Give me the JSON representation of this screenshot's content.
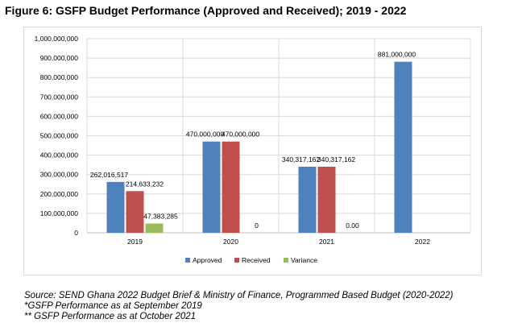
{
  "figure_title": "Figure 6: GSFP Budget Performance (Approved and Received); 2019 - 2022",
  "notes": [
    "Source: SEND Ghana 2022 Budget Brief & Ministry of Finance, Programmed Based Budget (2020-2022)",
    "*GSFP Performance as at September 2019",
    "** GSFP Performance as at October 2021"
  ],
  "chart_data": {
    "type": "bar",
    "title": "",
    "xlabel": "",
    "ylabel": "",
    "categories": [
      "2019",
      "2020",
      "2021",
      "2022"
    ],
    "ylim": [
      0,
      1000000000
    ],
    "ytick_step": 100000000,
    "y_tick_labels": [
      "0",
      "100,000,000",
      "200,000,000",
      "300,000,000",
      "400,000,000",
      "500,000,000",
      "600,000,000",
      "700,000,000",
      "800,000,000",
      "900,000,000",
      "1,000,000,000"
    ],
    "grid": true,
    "legend_position": "bottom",
    "series": [
      {
        "name": "Approved",
        "color": "#4f81bd",
        "values": [
          262016517,
          470000000,
          340317162,
          881000000
        ],
        "labels": [
          "262,016,517",
          "470,000,000",
          "340,317,162",
          "881,000,000"
        ]
      },
      {
        "name": "Received",
        "color": "#c0504d",
        "values": [
          214633232,
          470000000,
          340317162,
          null
        ],
        "labels": [
          "214,633,232",
          "470,000,000",
          "340,317,162",
          null
        ]
      },
      {
        "name": "Variance",
        "color": "#9bbb59",
        "values": [
          47383285,
          0,
          0,
          null
        ],
        "labels": [
          "47,383,285",
          "0",
          "0.00",
          null
        ]
      }
    ]
  }
}
